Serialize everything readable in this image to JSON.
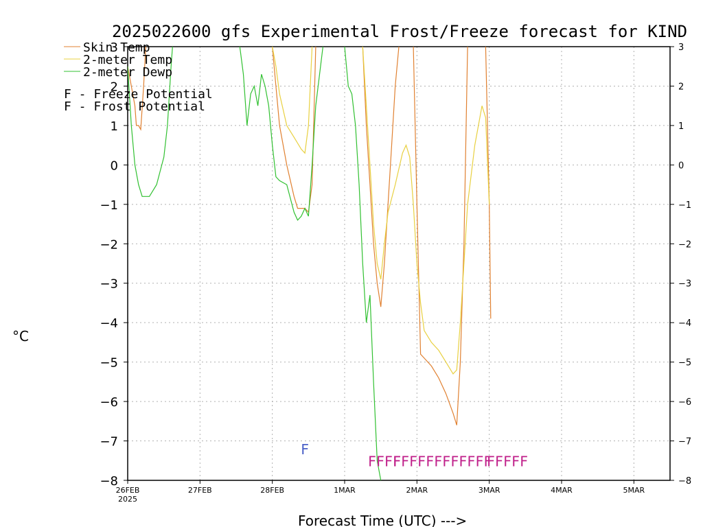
{
  "chart_data": {
    "type": "line",
    "title": "2025022600 gfs Experimental Frost/Freeze forecast for KIND",
    "xlabel": "Forecast Time (UTC) --->",
    "ylabel": "°C",
    "ylim": [
      -8,
      3
    ],
    "xlim": [
      0,
      7.5
    ],
    "x_unit": "days from 26FEB2025 00UTC",
    "grid": true,
    "yticks": [
      3,
      2,
      1,
      0,
      -1,
      -2,
      -3,
      -4,
      -5,
      -6,
      -7,
      -8
    ],
    "xticks": [
      {
        "x": 0,
        "label": "26FEB",
        "sublabel": "2025"
      },
      {
        "x": 1,
        "label": "27FEB"
      },
      {
        "x": 2,
        "label": "28FEB"
      },
      {
        "x": 3,
        "label": "1MAR"
      },
      {
        "x": 4,
        "label": "2MAR"
      },
      {
        "x": 5,
        "label": "3MAR"
      },
      {
        "x": 6,
        "label": "4MAR"
      },
      {
        "x": 7,
        "label": "5MAR"
      }
    ],
    "legend_placement": "top-left",
    "series": [
      {
        "name": "Skin Temp",
        "color": "#e08030",
        "points": [
          [
            0.0,
            2.5
          ],
          [
            0.05,
            2.0
          ],
          [
            0.1,
            1.5
          ],
          [
            0.12,
            1.0
          ],
          [
            0.15,
            1.0
          ],
          [
            0.18,
            0.9
          ],
          [
            0.22,
            2.0
          ],
          [
            0.25,
            3.0
          ],
          [
            null,
            null
          ],
          [
            2.0,
            3.0
          ],
          [
            2.05,
            2.0
          ],
          [
            2.1,
            1.0
          ],
          [
            2.2,
            0.0
          ],
          [
            2.3,
            -0.8
          ],
          [
            2.35,
            -1.1
          ],
          [
            2.45,
            -1.1
          ],
          [
            2.5,
            -1.2
          ],
          [
            2.55,
            -0.5
          ],
          [
            2.6,
            3.0
          ],
          [
            null,
            null
          ],
          [
            3.25,
            3.0
          ],
          [
            3.3,
            1.0
          ],
          [
            3.35,
            -0.5
          ],
          [
            3.4,
            -2.0
          ],
          [
            3.45,
            -3.0
          ],
          [
            3.5,
            -3.6
          ],
          [
            3.55,
            -2.5
          ],
          [
            3.6,
            -1.0
          ],
          [
            3.65,
            0.5
          ],
          [
            3.7,
            2.0
          ],
          [
            3.75,
            3.0
          ],
          [
            null,
            null
          ],
          [
            3.95,
            3.0
          ],
          [
            4.0,
            -1.0
          ],
          [
            4.05,
            -4.8
          ],
          [
            4.1,
            -4.9
          ],
          [
            4.2,
            -5.1
          ],
          [
            4.3,
            -5.4
          ],
          [
            4.4,
            -5.8
          ],
          [
            4.5,
            -6.3
          ],
          [
            4.55,
            -6.6
          ],
          [
            4.6,
            -5.0
          ],
          [
            4.65,
            -2.0
          ],
          [
            4.7,
            3.0
          ],
          [
            null,
            null
          ],
          [
            4.95,
            3.0
          ],
          [
            5.0,
            -1.0
          ],
          [
            5.02,
            -3.9
          ]
        ]
      },
      {
        "name": "2-meter Temp",
        "color": "#e8d040",
        "points": [
          [
            2.0,
            3.0
          ],
          [
            2.05,
            2.5
          ],
          [
            2.1,
            1.8
          ],
          [
            2.2,
            1.0
          ],
          [
            2.3,
            0.7
          ],
          [
            2.4,
            0.4
          ],
          [
            2.45,
            0.3
          ],
          [
            2.5,
            1.0
          ],
          [
            2.55,
            3.0
          ],
          [
            null,
            null
          ],
          [
            3.25,
            3.0
          ],
          [
            3.3,
            1.5
          ],
          [
            3.35,
            0.0
          ],
          [
            3.4,
            -1.5
          ],
          [
            3.45,
            -2.5
          ],
          [
            3.5,
            -2.9
          ],
          [
            3.55,
            -2.0
          ],
          [
            3.6,
            -1.2
          ],
          [
            3.7,
            -0.5
          ],
          [
            3.8,
            0.3
          ],
          [
            3.85,
            0.5
          ],
          [
            3.9,
            0.2
          ],
          [
            3.95,
            -1.0
          ],
          [
            4.0,
            -2.5
          ],
          [
            4.05,
            -3.5
          ],
          [
            4.1,
            -4.2
          ],
          [
            4.2,
            -4.5
          ],
          [
            4.3,
            -4.7
          ],
          [
            4.4,
            -5.0
          ],
          [
            4.5,
            -5.3
          ],
          [
            4.55,
            -5.2
          ],
          [
            4.6,
            -4.0
          ],
          [
            4.65,
            -2.5
          ],
          [
            4.7,
            -1.0
          ],
          [
            4.8,
            0.5
          ],
          [
            4.9,
            1.5
          ],
          [
            4.95,
            1.2
          ],
          [
            5.0,
            -1.0
          ]
        ]
      },
      {
        "name": "2-meter Dewp",
        "color": "#30c030",
        "points": [
          [
            0.0,
            2.5
          ],
          [
            0.05,
            1.0
          ],
          [
            0.1,
            0.0
          ],
          [
            0.15,
            -0.5
          ],
          [
            0.2,
            -0.8
          ],
          [
            0.3,
            -0.8
          ],
          [
            0.4,
            -0.5
          ],
          [
            0.5,
            0.2
          ],
          [
            0.55,
            1.0
          ],
          [
            0.6,
            2.5
          ],
          [
            0.62,
            3.0
          ],
          [
            null,
            null
          ],
          [
            1.55,
            3.0
          ],
          [
            1.6,
            2.3
          ],
          [
            1.65,
            1.0
          ],
          [
            1.7,
            1.8
          ],
          [
            1.75,
            2.0
          ],
          [
            1.8,
            1.5
          ],
          [
            1.85,
            2.3
          ],
          [
            1.9,
            2.0
          ],
          [
            1.95,
            1.5
          ],
          [
            2.0,
            0.5
          ],
          [
            2.05,
            -0.3
          ],
          [
            2.1,
            -0.4
          ],
          [
            2.2,
            -0.5
          ],
          [
            2.3,
            -1.2
          ],
          [
            2.35,
            -1.4
          ],
          [
            2.4,
            -1.3
          ],
          [
            2.45,
            -1.1
          ],
          [
            2.5,
            -1.3
          ],
          [
            2.55,
            0.0
          ],
          [
            2.6,
            1.5
          ],
          [
            2.7,
            3.0
          ],
          [
            null,
            null
          ],
          [
            3.0,
            3.0
          ],
          [
            3.05,
            2.0
          ],
          [
            3.1,
            1.8
          ],
          [
            3.15,
            1.0
          ],
          [
            3.2,
            -0.5
          ],
          [
            3.25,
            -2.5
          ],
          [
            3.3,
            -4.0
          ],
          [
            3.35,
            -3.3
          ],
          [
            3.4,
            -5.5
          ],
          [
            3.45,
            -7.5
          ],
          [
            3.5,
            -8.0
          ]
        ]
      }
    ],
    "flags": [
      {
        "label": "F",
        "type": "frost",
        "x": 2.45,
        "y": -7.2
      },
      {
        "label": "FFFF",
        "type": "freeze",
        "x": 3.55,
        "y": -7.5
      },
      {
        "label": "FFFFFFFFFFFF",
        "type": "freeze",
        "x": 4.35,
        "y": -7.5
      },
      {
        "label": "FFFFF",
        "type": "freeze",
        "x": 5.25,
        "y": -7.5
      }
    ]
  },
  "legend": {
    "items": [
      {
        "label": "Skin Temp",
        "color": "#e08030"
      },
      {
        "label": "2-meter Temp",
        "color": "#e8d040"
      },
      {
        "label": "2-meter Dewp",
        "color": "#30c030"
      }
    ],
    "freeze_label": "F - Freeze Potential",
    "frost_label": "F - Frost Potential",
    "freeze_color": "#c0208a",
    "frost_color": "#4a60c8"
  }
}
